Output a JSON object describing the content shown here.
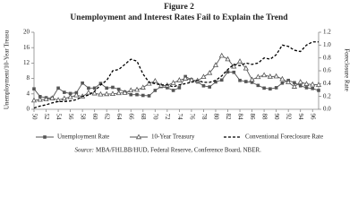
{
  "chart_data": {
    "type": "line",
    "title": "Figure 2",
    "subtitle": "Unemployment and Interest Rates Fail to Explain the Trend",
    "y_label": "Unemployment/10-Year Treasu",
    "y2_label": "Foreclosure Rate",
    "source_label": "Source:",
    "source": "MBA/FHLBB/HUD, Federal Reserve, Conference Board, NBER.",
    "x": [
      50,
      51,
      52,
      53,
      54,
      55,
      56,
      57,
      58,
      59,
      60,
      61,
      62,
      63,
      64,
      65,
      66,
      67,
      68,
      69,
      70,
      71,
      72,
      73,
      74,
      75,
      76,
      77,
      78,
      79,
      80,
      81,
      82,
      83,
      84,
      85,
      86,
      87,
      88,
      89,
      90,
      91,
      92,
      93,
      94,
      95,
      96,
      97
    ],
    "xlim": [
      50,
      97
    ],
    "xticks": [
      50,
      52,
      54,
      56,
      58,
      60,
      62,
      64,
      66,
      68,
      70,
      72,
      74,
      76,
      78,
      80,
      82,
      84,
      86,
      88,
      90,
      92,
      94,
      96
    ],
    "ylim": [
      0,
      20
    ],
    "yticks": [
      0,
      4,
      8,
      12,
      16,
      20
    ],
    "y2lim": [
      0,
      1.2
    ],
    "y2ticks": [
      {
        "value": 0,
        "label": "0.0"
      },
      0.2,
      0.4,
      0.6,
      0.8,
      {
        "value": 1,
        "label": "1.0"
      },
      1.2
    ],
    "series": [
      {
        "name": "Unemployment Rate",
        "color": "#555555",
        "marker": "square",
        "values": [
          5.3,
          3.3,
          3.0,
          2.9,
          5.5,
          4.4,
          4.1,
          4.3,
          6.8,
          5.5,
          5.5,
          6.7,
          5.5,
          5.7,
          5.2,
          4.5,
          3.8,
          3.8,
          3.6,
          3.5,
          4.9,
          5.9,
          5.6,
          4.9,
          5.6,
          8.5,
          7.7,
          7.1,
          6.1,
          5.8,
          7.1,
          7.6,
          9.7,
          9.6,
          7.5,
          7.2,
          7.0,
          6.2,
          5.5,
          5.3,
          5.6,
          6.8,
          7.5,
          6.9,
          6.1,
          5.6,
          5.4,
          4.9
        ]
      },
      {
        "name": "10-Year Treasury",
        "color": "#555555",
        "marker": "triangle",
        "values": [
          2.3,
          2.5,
          2.6,
          2.85,
          2.4,
          2.82,
          3.18,
          3.65,
          3.32,
          4.33,
          4.12,
          3.88,
          3.95,
          4.0,
          4.19,
          4.28,
          4.93,
          5.07,
          5.64,
          6.67,
          7.35,
          6.16,
          6.21,
          6.85,
          7.56,
          7.99,
          7.61,
          7.42,
          8.41,
          9.44,
          11.46,
          13.91,
          13.0,
          11.1,
          12.44,
          10.62,
          7.68,
          8.39,
          8.85,
          8.49,
          8.55,
          7.86,
          7.01,
          5.87,
          7.09,
          6.57,
          6.44,
          6.35
        ]
      },
      {
        "name": "Conventional Foreclosure Rate",
        "color": "#000000",
        "marker": "none",
        "axis": "y2",
        "dash": true,
        "values": [
          0.02,
          0.05,
          0.07,
          0.1,
          0.12,
          0.12,
          0.13,
          0.15,
          0.2,
          0.22,
          0.28,
          0.38,
          0.45,
          0.6,
          0.62,
          0.7,
          0.78,
          0.75,
          0.55,
          0.42,
          0.4,
          0.38,
          0.38,
          0.35,
          0.38,
          0.4,
          0.42,
          0.45,
          0.42,
          0.42,
          0.45,
          0.52,
          0.62,
          0.7,
          0.68,
          0.72,
          0.7,
          0.72,
          0.8,
          0.78,
          0.85,
          1.0,
          0.98,
          0.92,
          0.9,
          1.0,
          1.05,
          1.05
        ]
      }
    ]
  }
}
